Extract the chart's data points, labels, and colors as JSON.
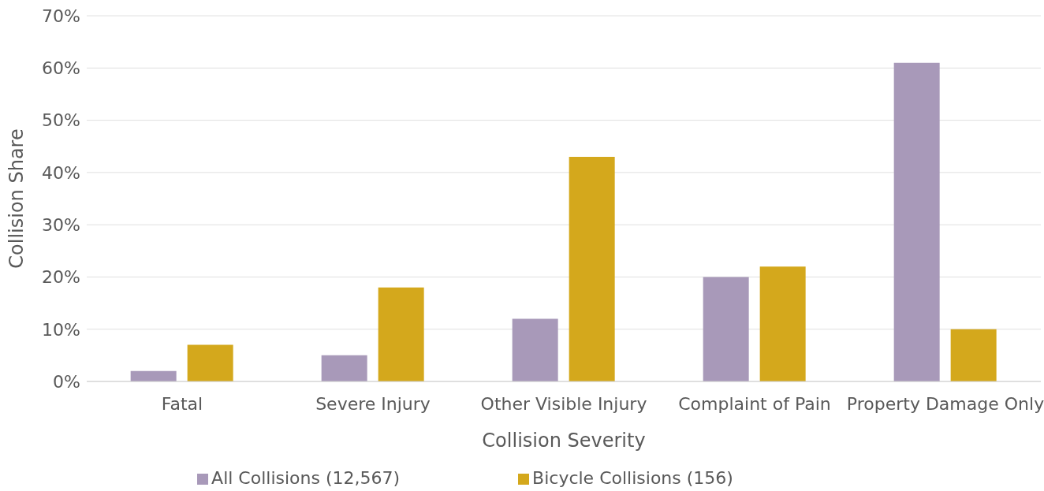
{
  "chart_data": {
    "type": "bar",
    "xlabel": "Collision Severity",
    "ylabel": "Collision Share",
    "categories": [
      "Fatal",
      "Severe Injury",
      "Other Visible Injury",
      "Complaint of Pain",
      "Property Damage Only"
    ],
    "series": [
      {
        "name": "All Collisions (12,567)",
        "color": "#a899b9",
        "values": [
          2,
          5,
          12,
          20,
          61
        ]
      },
      {
        "name": "Bicycle Collisions (156)",
        "color": "#d4a81c",
        "values": [
          7,
          18,
          43,
          22,
          10
        ]
      }
    ],
    "ylim": [
      0,
      70
    ],
    "yticks": [
      {
        "value": 0,
        "label": "0%"
      },
      {
        "value": 10,
        "label": "10%"
      },
      {
        "value": 20,
        "label": "20%"
      },
      {
        "value": 30,
        "label": "30%"
      },
      {
        "value": 40,
        "label": "40%"
      },
      {
        "value": 50,
        "label": "50%"
      },
      {
        "value": 60,
        "label": "60%"
      },
      {
        "value": 70,
        "label": "70%"
      }
    ],
    "grid": "y",
    "legend": "bottom"
  }
}
